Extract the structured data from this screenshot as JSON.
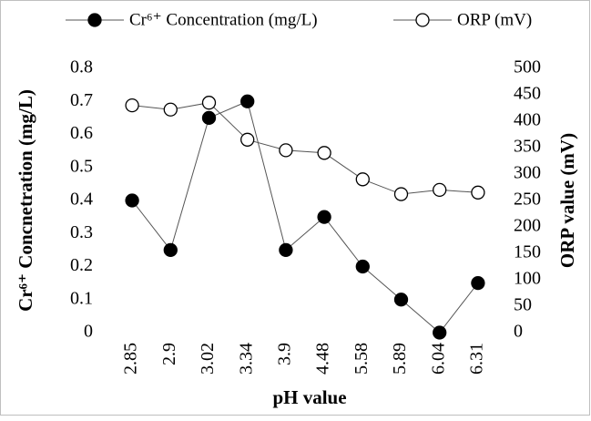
{
  "chart_data": {
    "type": "line",
    "categories": [
      "2.85",
      "2.9",
      "3.02",
      "3.34",
      "3.9",
      "4.48",
      "5.58",
      "5.89",
      "6.04",
      "6.31"
    ],
    "series": [
      {
        "name": "Cr⁶⁺ Concentration (mg/L)",
        "color": "#000000",
        "marker": "filled-circle",
        "values": [
          0.4,
          0.25,
          0.65,
          0.7,
          0.25,
          0.35,
          0.2,
          0.1,
          0,
          0.15
        ]
      },
      {
        "name": "ORP (mV)",
        "color": "#000000",
        "marker": "open-circle",
        "axis": "y2",
        "values": [
          430,
          422,
          435,
          365,
          345,
          340,
          290,
          262,
          270,
          265
        ]
      }
    ],
    "xlabel": "pH value",
    "ylabel": "Cr⁶⁺ Concnetration (mg/L)",
    "y2label": "ORP value (mV)",
    "ylim": [
      0,
      0.8
    ],
    "yticks": [
      0,
      0.1,
      0.2,
      0.3,
      0.4,
      0.5,
      0.6,
      0.7,
      0.8
    ],
    "y2lim": [
      0,
      500
    ],
    "y2ticks": [
      0,
      50,
      100,
      150,
      200,
      250,
      300,
      350,
      400,
      450,
      500
    ],
    "legend": "top",
    "grid": false
  }
}
